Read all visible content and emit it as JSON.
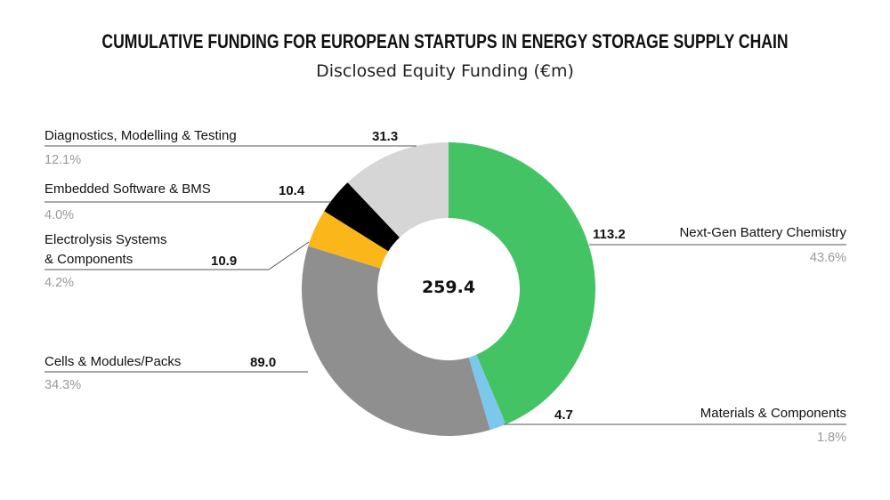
{
  "chart_data": {
    "type": "pie",
    "donut": true,
    "title": "CUMULATIVE FUNDING FOR EUROPEAN STARTUPS IN ENERGY STORAGE SUPPLY CHAIN",
    "subtitle": "Disclosed Equity Funding (€m)",
    "total": "259.4",
    "slices": [
      {
        "label": "Next-Gen Battery Chemistry",
        "value": 113.2,
        "value_label": "113.2",
        "percent": "43.6%",
        "color": "#43c363"
      },
      {
        "label": "Materials & Components",
        "value": 4.7,
        "value_label": "4.7",
        "percent": "1.8%",
        "color": "#7cc8ec"
      },
      {
        "label": "Cells & Modules/Packs",
        "value": 89.0,
        "value_label": "89.0",
        "percent": "34.3%",
        "color": "#8f8f8f"
      },
      {
        "label_line1": "Electrolysis Systems",
        "label_line2": "& Components",
        "value": 10.9,
        "value_label": "10.9",
        "percent": "4.2%",
        "color": "#fbb619"
      },
      {
        "label": "Embedded Software & BMS",
        "value": 10.4,
        "value_label": "10.4",
        "percent": "4.0%",
        "color": "#000000"
      },
      {
        "label": "Diagnostics, Modelling & Testing",
        "value": 31.3,
        "value_label": "31.3",
        "percent": "12.1%",
        "color": "#d6d6d6"
      }
    ]
  }
}
